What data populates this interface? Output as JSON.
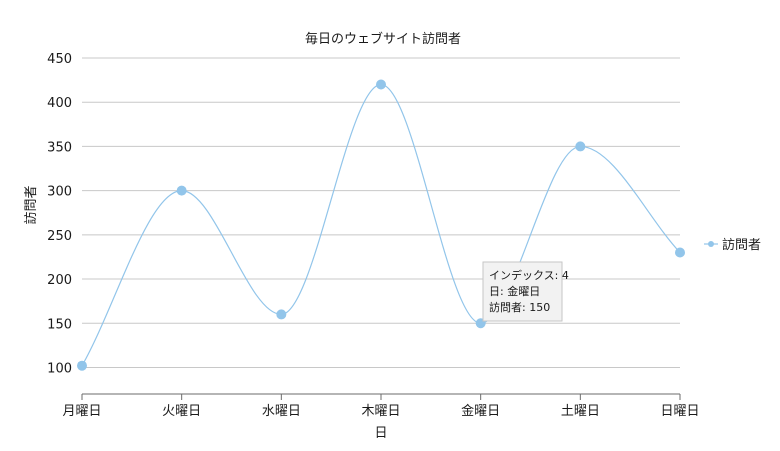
{
  "chart_data": {
    "type": "line",
    "title": "毎日のウェブサイト訪問者",
    "xlabel": "日",
    "ylabel": "訪問者",
    "categories": [
      "月曜日",
      "火曜日",
      "水曜日",
      "木曜日",
      "金曜日",
      "土曜日",
      "日曜日"
    ],
    "series": [
      {
        "name": "訪問者",
        "values": [
          102,
          300,
          160,
          420,
          150,
          350,
          230
        ]
      }
    ],
    "ylim": [
      70,
      450
    ],
    "yticks": [
      100,
      150,
      200,
      250,
      300,
      350,
      400,
      450
    ],
    "grid": true,
    "smooth": true,
    "legend_position": "right",
    "colors": {
      "series": "#92c5ea",
      "grid": "#c8c8c8",
      "axis": "#6b6b6b"
    },
    "tooltip": {
      "index_line": "インデックス: 4",
      "day_line": "日: 金曜日",
      "value_line": "訪問者: 150",
      "point_index": 4
    }
  }
}
